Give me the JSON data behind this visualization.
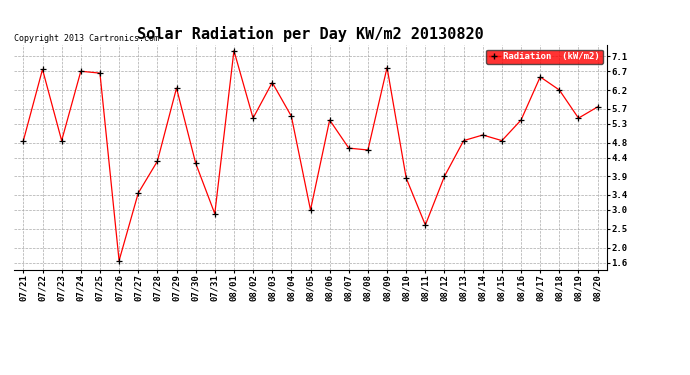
{
  "title": "Solar Radiation per Day KW/m2 20130820",
  "copyright_text": "Copyright 2013 Cartronics.com",
  "legend_label": "Radiation  (kW/m2)",
  "dates": [
    "07/21",
    "07/22",
    "07/23",
    "07/24",
    "07/25",
    "07/26",
    "07/27",
    "07/28",
    "07/29",
    "07/30",
    "07/31",
    "08/01",
    "08/02",
    "08/03",
    "08/04",
    "08/05",
    "08/06",
    "08/07",
    "08/08",
    "08/09",
    "08/10",
    "08/11",
    "08/12",
    "08/13",
    "08/14",
    "08/15",
    "08/16",
    "08/17",
    "08/18",
    "08/19",
    "08/20"
  ],
  "values": [
    4.85,
    6.75,
    4.85,
    6.7,
    6.65,
    1.65,
    3.45,
    4.3,
    6.25,
    4.25,
    2.9,
    7.25,
    5.45,
    6.4,
    5.5,
    3.0,
    5.4,
    4.65,
    4.6,
    6.8,
    3.85,
    2.6,
    3.9,
    4.85,
    5.0,
    4.85,
    5.4,
    6.55,
    6.2,
    5.45,
    5.75
  ],
  "line_color": "red",
  "marker_color": "black",
  "bg_color": "#ffffff",
  "plot_bg_color": "#ffffff",
  "grid_color": "#aaaaaa",
  "yticks": [
    1.6,
    2.0,
    2.5,
    3.0,
    3.4,
    3.9,
    4.4,
    4.8,
    5.3,
    5.7,
    6.2,
    6.7,
    7.1
  ],
  "ylim": [
    1.4,
    7.4
  ],
  "legend_bg": "#ff0000",
  "legend_text_color": "#ffffff",
  "title_fontsize": 11,
  "tick_fontsize": 6.5,
  "copyright_fontsize": 6.0
}
